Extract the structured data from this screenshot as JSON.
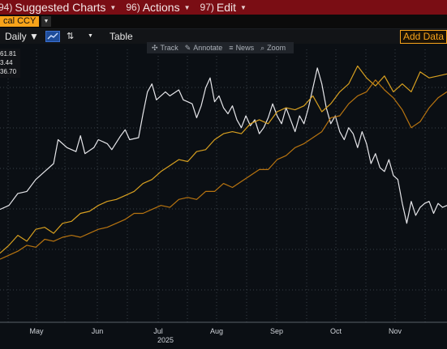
{
  "menubar": {
    "items": [
      {
        "num": "94)",
        "label": "Suggested Charts"
      },
      {
        "num": "96)",
        "label": "Actions"
      },
      {
        "num": "97)",
        "label": "Edit"
      }
    ]
  },
  "ccy": {
    "label": "cal CCY"
  },
  "toolbar": {
    "period": "Daily ▼",
    "table": "Table",
    "add_data": "Add Data"
  },
  "chart_tools": {
    "track": "Track",
    "annotate": "Annotate",
    "news": "News",
    "zoom": "Zoom"
  },
  "legend": {
    "values": [
      "61.81",
      "3.44",
      "36.70"
    ]
  },
  "colors": {
    "white_series": "#e6e6ea",
    "gold_series": "#d8a020",
    "orange_series": "#b87410",
    "menubar": "#7a0d14",
    "accent": "#f7a31a"
  },
  "chart_data": {
    "type": "line",
    "x_tick_labels": [
      "May",
      "Jun",
      "Jul",
      "Aug",
      "Sep",
      "Oct",
      "Nov"
    ],
    "x_year_label": "2025",
    "grid": true,
    "x_range": [
      0,
      100
    ],
    "y_range": [
      0,
      100
    ],
    "series": [
      {
        "color": "white_series",
        "points": [
          [
            0,
            27
          ],
          [
            2,
            29
          ],
          [
            4,
            35
          ],
          [
            6,
            36
          ],
          [
            8,
            42
          ],
          [
            10,
            46
          ],
          [
            12,
            50
          ],
          [
            13,
            62
          ],
          [
            15,
            58
          ],
          [
            17,
            56
          ],
          [
            18,
            64
          ],
          [
            19,
            55
          ],
          [
            21,
            58
          ],
          [
            22,
            62
          ],
          [
            24,
            60
          ],
          [
            25,
            57
          ],
          [
            27,
            64
          ],
          [
            28,
            67
          ],
          [
            29,
            62
          ],
          [
            31,
            63
          ],
          [
            32,
            75
          ],
          [
            33,
            86
          ],
          [
            34,
            90
          ],
          [
            35,
            82
          ],
          [
            37,
            86
          ],
          [
            38,
            84
          ],
          [
            40,
            87
          ],
          [
            41,
            82
          ],
          [
            42,
            81
          ],
          [
            43,
            80
          ],
          [
            44,
            73
          ],
          [
            45,
            79
          ],
          [
            46,
            88
          ],
          [
            47,
            93
          ],
          [
            48,
            81
          ],
          [
            49,
            84
          ],
          [
            50,
            78
          ],
          [
            51,
            75
          ],
          [
            52,
            79
          ],
          [
            53,
            72
          ],
          [
            54,
            68
          ],
          [
            55,
            74
          ],
          [
            56,
            69
          ],
          [
            57,
            72
          ],
          [
            58,
            65
          ],
          [
            59,
            68
          ],
          [
            60,
            73
          ],
          [
            61,
            80
          ],
          [
            62,
            74
          ],
          [
            63,
            70
          ],
          [
            64,
            78
          ],
          [
            65,
            72
          ],
          [
            66,
            66
          ],
          [
            67,
            74
          ],
          [
            68,
            70
          ],
          [
            69,
            78
          ],
          [
            70,
            88
          ],
          [
            71,
            98
          ],
          [
            72,
            90
          ],
          [
            73,
            78
          ],
          [
            74,
            70
          ],
          [
            75,
            74
          ],
          [
            76,
            66
          ],
          [
            77,
            62
          ],
          [
            78,
            68
          ],
          [
            79,
            65
          ],
          [
            80,
            58
          ],
          [
            81,
            66
          ],
          [
            82,
            60
          ],
          [
            83,
            50
          ],
          [
            84,
            55
          ],
          [
            85,
            48
          ],
          [
            86,
            46
          ],
          [
            87,
            52
          ],
          [
            88,
            44
          ],
          [
            89,
            42
          ],
          [
            90,
            30
          ],
          [
            91,
            20
          ],
          [
            92,
            31
          ],
          [
            93,
            24
          ],
          [
            94,
            28
          ],
          [
            95,
            30
          ],
          [
            96,
            31
          ],
          [
            97,
            25
          ],
          [
            98,
            30
          ],
          [
            99,
            28
          ],
          [
            100,
            29
          ]
        ]
      },
      {
        "color": "gold_series",
        "points": [
          [
            0,
            5
          ],
          [
            2,
            9
          ],
          [
            4,
            14
          ],
          [
            6,
            11
          ],
          [
            8,
            17
          ],
          [
            10,
            18
          ],
          [
            12,
            15
          ],
          [
            14,
            20
          ],
          [
            16,
            21
          ],
          [
            18,
            25
          ],
          [
            20,
            26
          ],
          [
            22,
            29
          ],
          [
            24,
            31
          ],
          [
            26,
            32
          ],
          [
            28,
            34
          ],
          [
            30,
            36
          ],
          [
            32,
            40
          ],
          [
            34,
            42
          ],
          [
            36,
            46
          ],
          [
            38,
            49
          ],
          [
            40,
            52
          ],
          [
            42,
            51
          ],
          [
            44,
            56
          ],
          [
            46,
            57
          ],
          [
            48,
            62
          ],
          [
            50,
            65
          ],
          [
            52,
            66
          ],
          [
            54,
            65
          ],
          [
            56,
            70
          ],
          [
            58,
            72
          ],
          [
            60,
            70
          ],
          [
            62,
            76
          ],
          [
            64,
            78
          ],
          [
            66,
            77
          ],
          [
            68,
            79
          ],
          [
            70,
            84
          ],
          [
            72,
            76
          ],
          [
            74,
            80
          ],
          [
            76,
            86
          ],
          [
            78,
            90
          ],
          [
            80,
            99
          ],
          [
            82,
            93
          ],
          [
            84,
            89
          ],
          [
            86,
            94
          ],
          [
            88,
            86
          ],
          [
            90,
            90
          ],
          [
            92,
            86
          ],
          [
            94,
            96
          ],
          [
            96,
            93
          ],
          [
            98,
            94
          ],
          [
            100,
            95
          ]
        ]
      },
      {
        "color": "orange_series",
        "points": [
          [
            0,
            2
          ],
          [
            2,
            4
          ],
          [
            4,
            6
          ],
          [
            6,
            9
          ],
          [
            8,
            8
          ],
          [
            10,
            12
          ],
          [
            12,
            11
          ],
          [
            14,
            13
          ],
          [
            16,
            14
          ],
          [
            18,
            13
          ],
          [
            20,
            15
          ],
          [
            22,
            17
          ],
          [
            24,
            18
          ],
          [
            26,
            20
          ],
          [
            28,
            22
          ],
          [
            30,
            25
          ],
          [
            32,
            25
          ],
          [
            34,
            27
          ],
          [
            36,
            29
          ],
          [
            38,
            28
          ],
          [
            40,
            32
          ],
          [
            42,
            33
          ],
          [
            44,
            32
          ],
          [
            46,
            36
          ],
          [
            48,
            36
          ],
          [
            50,
            40
          ],
          [
            52,
            38
          ],
          [
            54,
            41
          ],
          [
            56,
            44
          ],
          [
            58,
            47
          ],
          [
            60,
            47
          ],
          [
            62,
            52
          ],
          [
            64,
            54
          ],
          [
            66,
            58
          ],
          [
            68,
            60
          ],
          [
            70,
            63
          ],
          [
            72,
            66
          ],
          [
            74,
            73
          ],
          [
            76,
            74
          ],
          [
            78,
            80
          ],
          [
            80,
            84
          ],
          [
            82,
            86
          ],
          [
            84,
            92
          ],
          [
            86,
            87
          ],
          [
            88,
            83
          ],
          [
            90,
            77
          ],
          [
            92,
            68
          ],
          [
            94,
            71
          ],
          [
            96,
            78
          ],
          [
            98,
            83
          ],
          [
            100,
            86
          ]
        ]
      }
    ]
  }
}
